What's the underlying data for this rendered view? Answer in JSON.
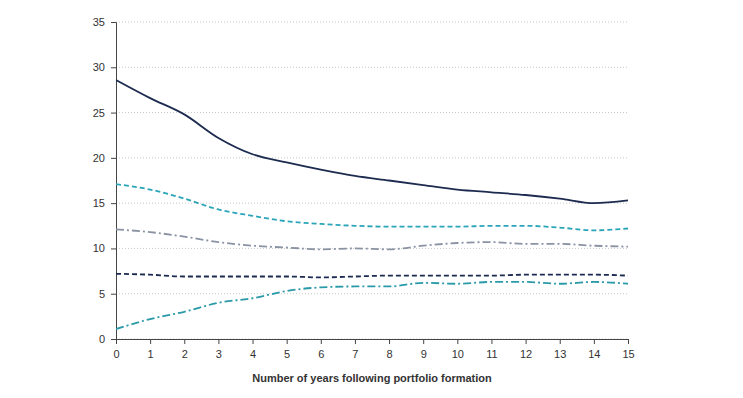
{
  "chart_data": {
    "type": "line",
    "x_label": "Number of years following portfolio formation",
    "x": [
      0,
      1,
      2,
      3,
      4,
      5,
      6,
      7,
      8,
      9,
      10,
      11,
      12,
      13,
      14,
      15
    ],
    "series": [
      {
        "color": "#1c2b4f",
        "line_style": "solid",
        "values": [
          28.6,
          26.6,
          24.8,
          22.2,
          20.4,
          19.5,
          18.7,
          18.0,
          17.5,
          17.0,
          16.5,
          16.2,
          15.9,
          15.5,
          15.0,
          15.3
        ]
      },
      {
        "color": "#2aa5b8",
        "line_style": "dashed",
        "values": [
          17.1,
          16.5,
          15.5,
          14.3,
          13.6,
          13.0,
          12.7,
          12.5,
          12.4,
          12.4,
          12.4,
          12.5,
          12.5,
          12.3,
          12.0,
          12.2
        ]
      },
      {
        "color": "#8a93a3",
        "line_style": "dashdot",
        "values": [
          12.1,
          11.8,
          11.3,
          10.7,
          10.3,
          10.1,
          9.9,
          10.0,
          9.9,
          10.3,
          10.6,
          10.7,
          10.5,
          10.5,
          10.3,
          10.2
        ]
      },
      {
        "color": "#1c2b4f",
        "line_style": "dashed",
        "values": [
          7.2,
          7.1,
          6.9,
          6.9,
          6.9,
          6.9,
          6.8,
          6.9,
          7.0,
          7.0,
          7.0,
          7.0,
          7.1,
          7.1,
          7.1,
          7.0
        ]
      },
      {
        "color": "#2a9aa8",
        "line_style": "dashdot",
        "values": [
          1.1,
          2.2,
          3.0,
          4.0,
          4.5,
          5.3,
          5.7,
          5.8,
          5.8,
          6.2,
          6.1,
          6.3,
          6.3,
          6.1,
          6.3,
          6.1
        ]
      }
    ],
    "xlim": [
      0,
      15
    ],
    "xticks": [
      0,
      1,
      2,
      3,
      4,
      5,
      6,
      7,
      8,
      9,
      10,
      11,
      12,
      13,
      14,
      15
    ],
    "ylim": [
      0,
      35
    ],
    "yticks": [
      0,
      5,
      10,
      15,
      20,
      25,
      30,
      35
    ],
    "grid": true
  }
}
